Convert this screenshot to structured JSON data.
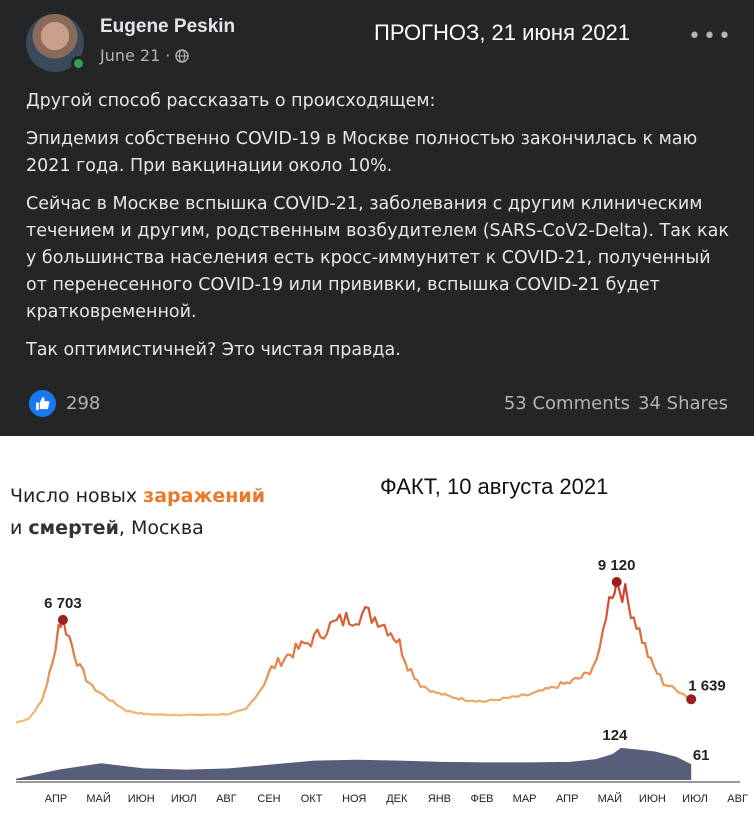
{
  "post": {
    "author": "Eugene Peskin",
    "date": "June 21",
    "date_sep": "·",
    "privacy_icon": "globe-icon",
    "forecast_label": "ПРОГНОЗ, 21 июня 2021",
    "more_label": "•••",
    "paragraphs": [
      "Другой способ рассказать о происходящем:",
      "Эпидемия собственно COVID-19 в Москве полностью закончилась к маю 2021 года. При вакцинации около 10%.",
      "Сейчас в Москве вспышка COVID-21, заболевания с другим клиническим течением и другим, родственным возбудителем (SARS-CoV2-Delta). Так как у большинства населения есть кросс-иммунитет к COVID-21, полученный от перенесенного COVID-19 или прививки, вспышка COVID-21 будет кратковременной.",
      "Так оптимистичней? Это чистая правда."
    ],
    "likes": "298",
    "comments": "53 Comments",
    "shares": "34 Shares",
    "colors": {
      "background": "#242526",
      "like": "#1877f2",
      "online": "#31a24c"
    }
  },
  "chart_header": {
    "title_part1": "Число новых ",
    "title_accent": "заражений",
    "title_part2": "и ",
    "title_dark": "смертей",
    "title_part3": ", Москва",
    "fact_label": "ФАКТ, 10 августа 2021",
    "colors": {
      "accent": "#e87b2b",
      "deaths": "#4a4f6e",
      "marker": "#9e1f1f"
    }
  },
  "chart_data": {
    "type": "area",
    "title": "Число новых заражений и смертей, Москва",
    "x_labels": [
      "АПР",
      "МАЙ",
      "ИЮН",
      "ИЮЛ",
      "АВГ",
      "СЕН",
      "ОКТ",
      "НОЯ",
      "ДЕК",
      "ЯНВ",
      "ФЕВ",
      "МАР",
      "АПР",
      "МАЙ",
      "ИЮН",
      "ИЮЛ",
      "АВГ"
    ],
    "ylim": [
      0,
      9500
    ],
    "series": [
      {
        "name": "заражений",
        "color_low": "#f0c27a",
        "color_high": "#c0392b",
        "points": [
          [
            0,
            150
          ],
          [
            0.3,
            400
          ],
          [
            0.6,
            1500
          ],
          [
            0.85,
            3800
          ],
          [
            1.0,
            6400
          ],
          [
            1.1,
            6703
          ],
          [
            1.25,
            5600
          ],
          [
            1.5,
            3600
          ],
          [
            1.8,
            2400
          ],
          [
            2.2,
            1600
          ],
          [
            2.6,
            900
          ],
          [
            3.0,
            700
          ],
          [
            3.5,
            650
          ],
          [
            4.0,
            640
          ],
          [
            4.5,
            650
          ],
          [
            5.0,
            700
          ],
          [
            5.4,
            1000
          ],
          [
            5.75,
            2300
          ],
          [
            6.0,
            3600
          ],
          [
            6.3,
            4300
          ],
          [
            6.7,
            5000
          ],
          [
            7.0,
            5500
          ],
          [
            7.3,
            6200
          ],
          [
            7.6,
            6600
          ],
          [
            7.9,
            6900
          ],
          [
            8.2,
            7100
          ],
          [
            8.5,
            6800
          ],
          [
            8.8,
            6000
          ],
          [
            9.0,
            5200
          ],
          [
            9.2,
            3800
          ],
          [
            9.5,
            2600
          ],
          [
            9.8,
            2100
          ],
          [
            10.2,
            1800
          ],
          [
            10.6,
            1600
          ],
          [
            11.0,
            1500
          ],
          [
            11.5,
            1700
          ],
          [
            12.0,
            1900
          ],
          [
            12.5,
            2300
          ],
          [
            13.0,
            2700
          ],
          [
            13.4,
            3200
          ],
          [
            13.7,
            4500
          ],
          [
            13.85,
            7200
          ],
          [
            14.0,
            8600
          ],
          [
            14.1,
            9120
          ],
          [
            14.3,
            8300
          ],
          [
            14.5,
            7000
          ],
          [
            14.7,
            5500
          ],
          [
            14.9,
            4000
          ],
          [
            15.2,
            2700
          ],
          [
            15.6,
            2100
          ],
          [
            15.85,
            1639
          ]
        ],
        "peaks": [
          {
            "x": 1.1,
            "y": 6703,
            "label": "6 703"
          },
          {
            "x": 14.1,
            "y": 9120,
            "label": "9 120"
          },
          {
            "x": 15.85,
            "y": 1639,
            "label": "1 639"
          }
        ]
      },
      {
        "name": "смертей",
        "color": "#4a4f6e",
        "points": [
          [
            0,
            5
          ],
          [
            1,
            40
          ],
          [
            2,
            65
          ],
          [
            3,
            45
          ],
          [
            4,
            40
          ],
          [
            5,
            45
          ],
          [
            6,
            60
          ],
          [
            7,
            75
          ],
          [
            8,
            78
          ],
          [
            9,
            75
          ],
          [
            10,
            70
          ],
          [
            11,
            68
          ],
          [
            12,
            68
          ],
          [
            13,
            70
          ],
          [
            13.6,
            80
          ],
          [
            14.0,
            100
          ],
          [
            14.2,
            124
          ],
          [
            14.6,
            118
          ],
          [
            15.0,
            110
          ],
          [
            15.5,
            90
          ],
          [
            15.85,
            61
          ]
        ],
        "peaks": [
          {
            "x": 14.2,
            "y": 124,
            "label": "124"
          },
          {
            "x": 15.85,
            "y": 61,
            "label": "61"
          }
        ]
      }
    ]
  }
}
